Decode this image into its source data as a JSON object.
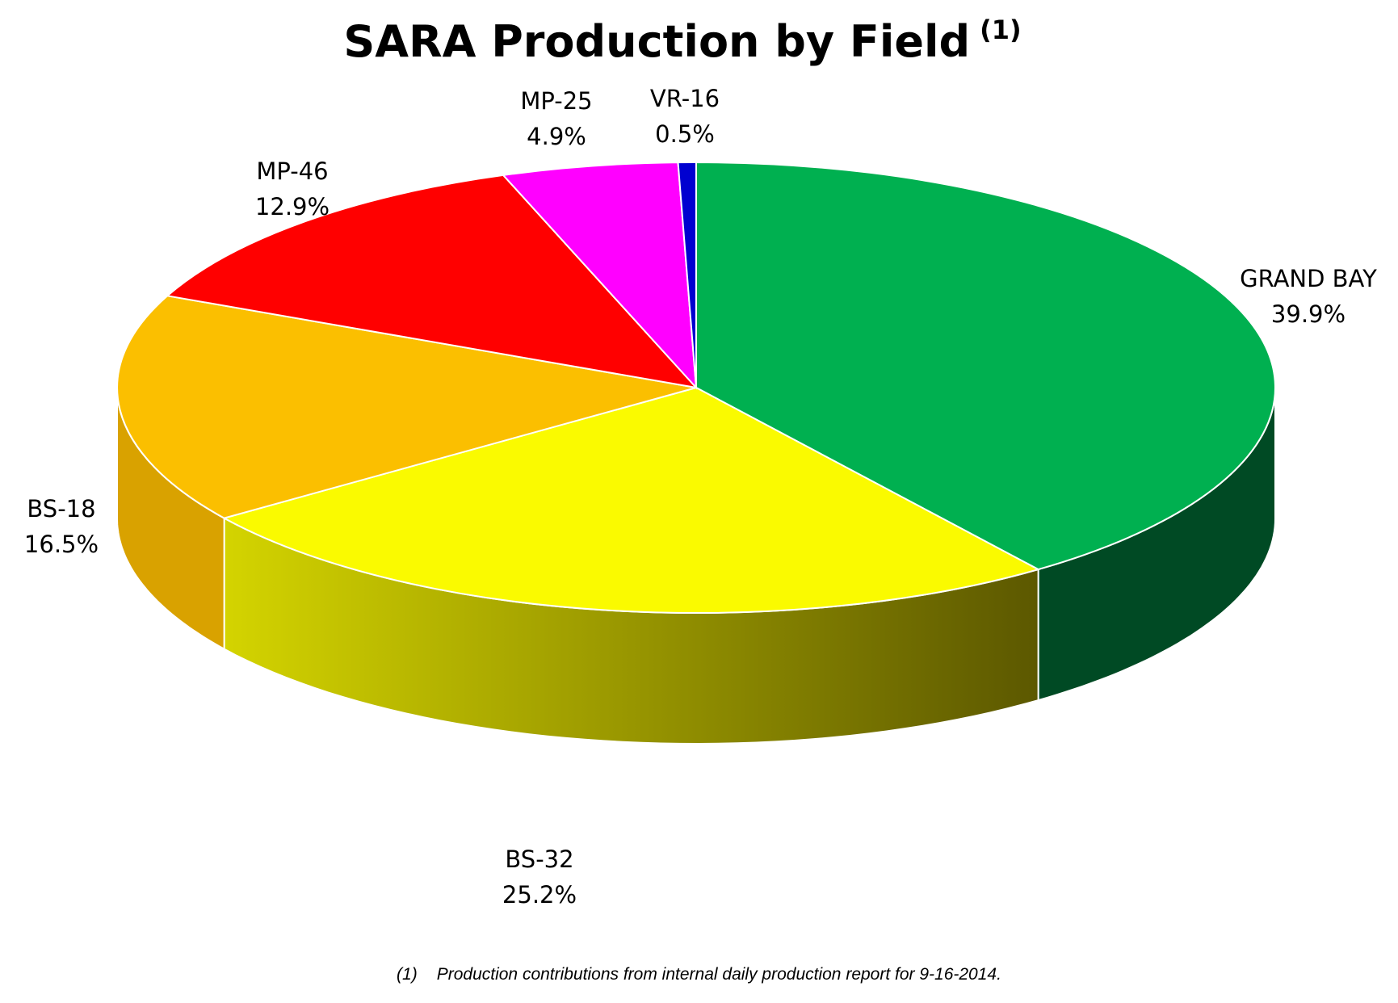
{
  "chart_data": {
    "type": "pie",
    "title": "SARA Production by Field",
    "title_superscript": "(1)",
    "slices": [
      {
        "label": "GRAND BAY",
        "value_text": "39.9%",
        "value": 39.9,
        "color": "#00B050",
        "side_color": "#004A24"
      },
      {
        "label": "BS-32",
        "value_text": "25.2%",
        "value": 25.2,
        "color": "#FAFA00",
        "side_color": "#A9A800"
      },
      {
        "label": "BS-18",
        "value_text": "16.5%",
        "value": 16.5,
        "color": "#FBBF00",
        "side_color": "#D9A200"
      },
      {
        "label": "MP-46",
        "value_text": "12.9%",
        "value": 12.9,
        "color": "#FF0000",
        "side_color": "#A00000"
      },
      {
        "label": "MP-25",
        "value_text": "4.9%",
        "value": 4.9,
        "color": "#FF00FF",
        "side_color": "#A000A0"
      },
      {
        "label": "VR-16",
        "value_text": "0.5%",
        "value": 0.5,
        "color": "#0000D0",
        "side_color": "#000080"
      }
    ],
    "legend": "none"
  },
  "footnote": {
    "marker": "(1)",
    "text": "Production contributions from internal daily production report for 9-16-2014."
  }
}
